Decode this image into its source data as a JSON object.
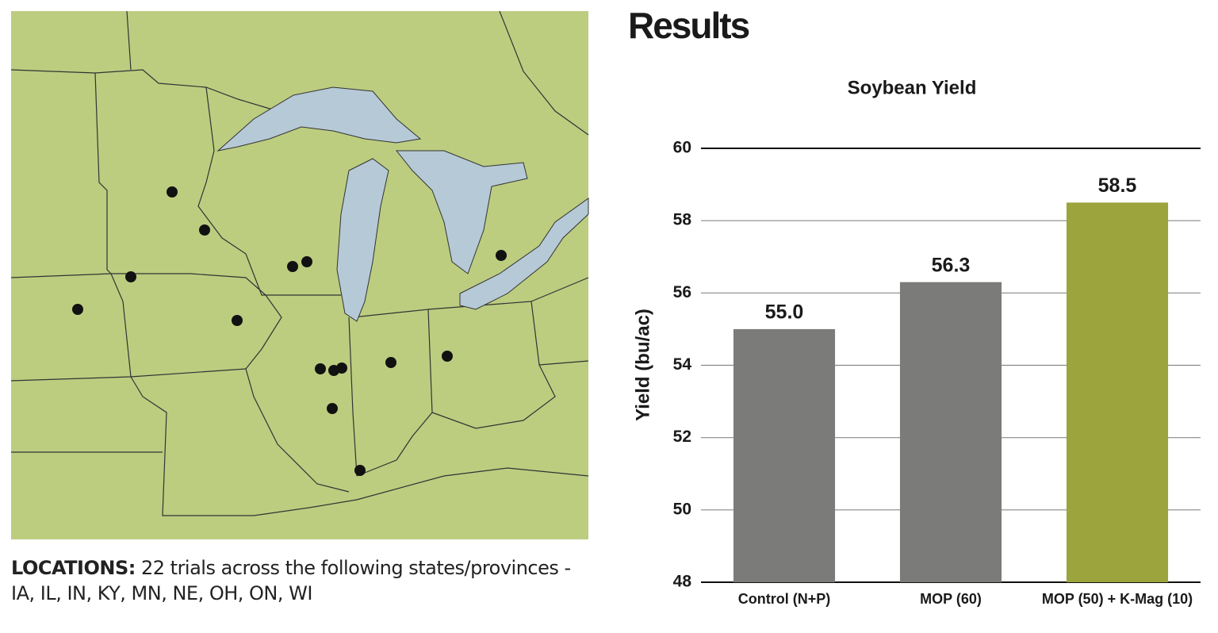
{
  "heading": "Results",
  "caption": {
    "label": "LOCATIONS:",
    "text": "22 trials across the following states/provinces - IA, IL, IN, KY, MN, NE, OH, ON, WI"
  },
  "chart_data": {
    "type": "bar",
    "title": "Soybean Yield",
    "y_label": "Yield (bu/ac)",
    "categories": [
      "Control (N+P)",
      "MOP (60)",
      "MOP (50) + K-Mag (10)"
    ],
    "values": [
      55.0,
      56.3,
      58.5
    ],
    "value_labels": [
      "55.0",
      "56.3",
      "58.5"
    ],
    "colors": [
      "#7b7c7a",
      "#7b7c7a",
      "#9ba43d"
    ],
    "ylim": [
      48,
      60
    ],
    "yticks": [
      48,
      50,
      52,
      54,
      56,
      58,
      60
    ],
    "grid": true
  }
}
